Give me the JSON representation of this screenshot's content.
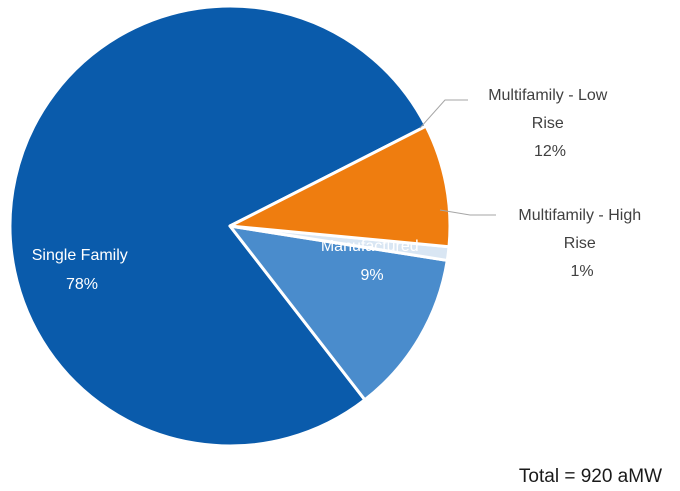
{
  "chart_data": {
    "type": "pie",
    "start_angle_deg": 27,
    "direction": "counterclockwise",
    "slices": [
      {
        "name": "Single Family",
        "value": 78,
        "value_label": "78%",
        "color": "#0a5bab",
        "label_color": "#ffffff"
      },
      {
        "name": "Multifamily - Low Rise",
        "value": 12,
        "value_label": "12%",
        "color": "#4a8ccc",
        "label_color": "#404040"
      },
      {
        "name": "Multifamily - High Rise",
        "value": 1,
        "value_label": "1%",
        "color": "#d9e6f3",
        "label_color": "#404040"
      },
      {
        "name": "Manufactured",
        "value": 9,
        "value_label": "9%",
        "color": "#ef7d0f",
        "label_color": "#ffffff"
      }
    ],
    "labels": {
      "single_family": {
        "line1": "Single Family",
        "line2": "78%"
      },
      "multi_low": {
        "line1": "Multifamily - Low",
        "line2": "Rise",
        "line3": "12%"
      },
      "multi_high": {
        "line1": "Multifamily - High",
        "line2": "Rise",
        "line3": "1%"
      },
      "manufactured": {
        "line1": "Manufactured",
        "line2": "9%"
      }
    },
    "note": "Total = 920 aMW"
  }
}
